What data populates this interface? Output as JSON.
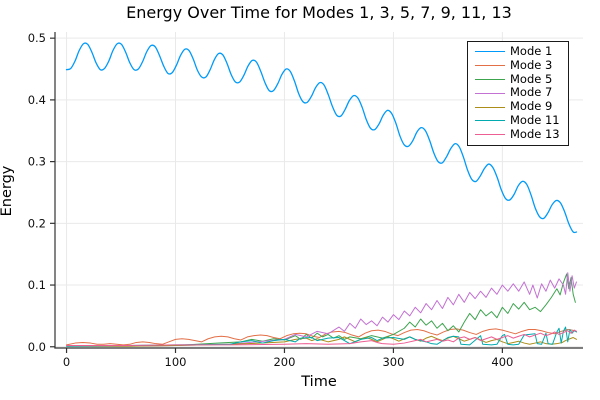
{
  "chart_data": {
    "type": "line",
    "title": "Energy Over Time for Modes 1, 3, 5, 7, 9, 11, 13",
    "xlabel": "Time",
    "ylabel": "Energy",
    "xlim": [
      -10.6,
      474
    ],
    "ylim": [
      -0.002,
      0.51
    ],
    "grid": true,
    "legend_position": "top-right",
    "x_ticks": {
      "values": [
        0,
        100,
        200,
        300,
        400
      ],
      "labels": [
        "0",
        "100",
        "200",
        "300",
        "400"
      ]
    },
    "y_ticks": {
      "values": [
        0.0,
        0.1,
        0.2,
        0.3,
        0.4,
        0.5
      ],
      "labels": [
        "0.0",
        "0.1",
        "0.2",
        "0.3",
        "0.4",
        "0.5"
      ]
    },
    "series": [
      {
        "name": "Mode 1",
        "color": "#009AFA",
        "smooth": true,
        "width": 1.3,
        "x": [
          0,
          3.9,
          7.8,
          11.6,
          15.5,
          19.4,
          23.3,
          27.1,
          31,
          34.9,
          38.8,
          42.6,
          46.5,
          50.4,
          54.3,
          58.1,
          62,
          65.9,
          69.8,
          73.6,
          77.5,
          81.4,
          85.3,
          89.1,
          93,
          96.9,
          100.8,
          104.6,
          108.5,
          112.4,
          116.3,
          120.1,
          124,
          127.9,
          131.8,
          135.6,
          139.5,
          143.4,
          147.3,
          151.1,
          155,
          158.9,
          162.8,
          166.6,
          170.5,
          174.4,
          178.3,
          182.1,
          186,
          189.9,
          193.8,
          197.6,
          201.5,
          205.4,
          209.3,
          213.1,
          217,
          220.9,
          224.8,
          228.6,
          232.5,
          236.4,
          240.3,
          244.1,
          248,
          251.9,
          255.8,
          259.6,
          263.5,
          267.4,
          271.3,
          275.1,
          279,
          282.9,
          286.8,
          290.6,
          294.5,
          298.4,
          302.3,
          306.1,
          310,
          313.9,
          317.8,
          321.6,
          325.5,
          329.4,
          333.3,
          337.1,
          341,
          344.9,
          348.8,
          352.6,
          356.5,
          360.4,
          364.3,
          368.1,
          372,
          375.9,
          379.8,
          383.6,
          387.5,
          391.4,
          395.3,
          399.1,
          403,
          406.9,
          410.8,
          414.6,
          418.5,
          422.4,
          426.3,
          430.1,
          434,
          437.9,
          441.8,
          445.6,
          449.5,
          453.4,
          457.3,
          461.1,
          465,
          468
        ],
        "y": [
          0.449,
          0.451,
          0.463,
          0.48,
          0.491,
          0.49,
          0.477,
          0.46,
          0.449,
          0.451,
          0.463,
          0.48,
          0.491,
          0.49,
          0.477,
          0.46,
          0.449,
          0.45,
          0.462,
          0.478,
          0.488,
          0.486,
          0.472,
          0.455,
          0.443,
          0.444,
          0.456,
          0.472,
          0.482,
          0.48,
          0.466,
          0.448,
          0.437,
          0.437,
          0.449,
          0.465,
          0.475,
          0.473,
          0.459,
          0.441,
          0.429,
          0.429,
          0.44,
          0.455,
          0.464,
          0.461,
          0.446,
          0.428,
          0.415,
          0.415,
          0.426,
          0.441,
          0.45,
          0.446,
          0.43,
          0.41,
          0.397,
          0.396,
          0.406,
          0.42,
          0.428,
          0.424,
          0.408,
          0.389,
          0.375,
          0.374,
          0.385,
          0.399,
          0.407,
          0.403,
          0.388,
          0.368,
          0.354,
          0.352,
          0.361,
          0.375,
          0.383,
          0.378,
          0.362,
          0.341,
          0.327,
          0.325,
          0.334,
          0.348,
          0.355,
          0.35,
          0.334,
          0.314,
          0.3,
          0.298,
          0.308,
          0.321,
          0.329,
          0.324,
          0.307,
          0.286,
          0.271,
          0.268,
          0.277,
          0.289,
          0.296,
          0.29,
          0.274,
          0.254,
          0.24,
          0.238,
          0.247,
          0.261,
          0.268,
          0.263,
          0.246,
          0.225,
          0.211,
          0.208,
          0.217,
          0.23,
          0.237,
          0.233,
          0.218,
          0.199,
          0.186,
          0.186
        ]
      },
      {
        "name": "Mode 3",
        "color": "#E36F47",
        "smooth": false,
        "width": 1.0,
        "x": [
          0,
          8,
          15,
          22,
          28,
          34,
          40,
          46,
          52,
          58,
          64,
          70,
          76,
          82,
          88,
          94,
          100,
          106,
          112,
          118,
          124,
          130,
          136,
          142,
          148,
          154,
          160,
          166,
          172,
          178,
          184,
          190,
          196,
          202,
          208,
          214,
          220,
          226,
          232,
          238,
          244,
          250,
          256,
          262,
          268,
          274,
          280,
          286,
          292,
          298,
          304,
          310,
          316,
          322,
          328,
          334,
          340,
          346,
          352,
          358,
          364,
          370,
          376,
          382,
          388,
          394,
          400,
          406,
          412,
          418,
          424,
          430,
          436,
          442,
          448,
          454,
          460,
          464,
          468
        ],
        "y": [
          0.003,
          0.006,
          0.007,
          0.006,
          0.004,
          0.004,
          0.005,
          0.004,
          0.003,
          0.004,
          0.007,
          0.008,
          0.007,
          0.005,
          0.004,
          0.008,
          0.012,
          0.013,
          0.012,
          0.01,
          0.008,
          0.013,
          0.016,
          0.017,
          0.016,
          0.013,
          0.011,
          0.016,
          0.018,
          0.019,
          0.018,
          0.015,
          0.013,
          0.018,
          0.021,
          0.022,
          0.021,
          0.017,
          0.015,
          0.021,
          0.024,
          0.025,
          0.023,
          0.019,
          0.016,
          0.022,
          0.026,
          0.027,
          0.025,
          0.021,
          0.018,
          0.023,
          0.027,
          0.028,
          0.026,
          0.022,
          0.019,
          0.024,
          0.028,
          0.029,
          0.027,
          0.023,
          0.02,
          0.025,
          0.028,
          0.029,
          0.027,
          0.024,
          0.021,
          0.025,
          0.028,
          0.028,
          0.026,
          0.023,
          0.021,
          0.025,
          0.028,
          0.027,
          0.025
        ]
      },
      {
        "name": "Mode 5",
        "color": "#3DA44E",
        "smooth": false,
        "width": 1.0,
        "x": [
          0,
          60,
          100,
          120,
          140,
          160,
          170,
          180,
          190,
          200,
          210,
          215,
          220,
          225,
          230,
          235,
          240,
          245,
          250,
          255,
          260,
          270,
          280,
          290,
          300,
          310,
          315,
          320,
          325,
          330,
          335,
          340,
          345,
          350,
          355,
          360,
          365,
          370,
          375,
          380,
          385,
          390,
          395,
          400,
          405,
          410,
          415,
          420,
          425,
          430,
          435,
          440,
          445,
          450,
          453,
          456,
          459,
          461,
          463,
          465,
          467
        ],
        "y": [
          0.001,
          0.001,
          0.002,
          0.004,
          0.006,
          0.008,
          0.012,
          0.009,
          0.013,
          0.011,
          0.018,
          0.012,
          0.02,
          0.014,
          0.022,
          0.016,
          0.02,
          0.014,
          0.018,
          0.012,
          0.016,
          0.013,
          0.018,
          0.014,
          0.02,
          0.03,
          0.04,
          0.032,
          0.045,
          0.035,
          0.042,
          0.03,
          0.038,
          0.026,
          0.034,
          0.024,
          0.04,
          0.054,
          0.044,
          0.06,
          0.05,
          0.057,
          0.047,
          0.064,
          0.054,
          0.07,
          0.061,
          0.072,
          0.06,
          0.064,
          0.057,
          0.068,
          0.08,
          0.094,
          0.084,
          0.104,
          0.118,
          0.094,
          0.112,
          0.085,
          0.072
        ]
      },
      {
        "name": "Mode 7",
        "color": "#C371D2",
        "smooth": false,
        "width": 1.0,
        "x": [
          0,
          50,
          100,
          150,
          200,
          210,
          220,
          230,
          240,
          250,
          255,
          260,
          265,
          270,
          275,
          280,
          285,
          290,
          295,
          300,
          305,
          310,
          315,
          320,
          325,
          330,
          335,
          340,
          345,
          350,
          355,
          360,
          365,
          370,
          375,
          380,
          385,
          390,
          395,
          400,
          405,
          410,
          415,
          420,
          425,
          428,
          432,
          436,
          440,
          444,
          448,
          452,
          456,
          458,
          460,
          462,
          464,
          466,
          468
        ],
        "y": [
          0.001,
          0.001,
          0.002,
          0.004,
          0.012,
          0.02,
          0.016,
          0.025,
          0.021,
          0.032,
          0.025,
          0.038,
          0.03,
          0.045,
          0.036,
          0.042,
          0.034,
          0.048,
          0.04,
          0.052,
          0.044,
          0.058,
          0.05,
          0.064,
          0.055,
          0.07,
          0.06,
          0.075,
          0.062,
          0.08,
          0.068,
          0.085,
          0.072,
          0.088,
          0.078,
          0.09,
          0.08,
          0.095,
          0.085,
          0.1,
          0.09,
          0.102,
          0.09,
          0.105,
          0.085,
          0.1,
          0.079,
          0.102,
          0.09,
          0.108,
          0.095,
          0.11,
          0.1,
          0.085,
          0.12,
          0.09,
          0.115,
          0.095,
          0.105
        ]
      },
      {
        "name": "Mode 9",
        "color": "#AC8D18",
        "smooth": false,
        "width": 1.0,
        "x": [
          0,
          50,
          100,
          150,
          180,
          200,
          210,
          220,
          225,
          230,
          240,
          250,
          255,
          260,
          265,
          270,
          275,
          280,
          285,
          290,
          295,
          300,
          305,
          310,
          315,
          320,
          325,
          330,
          335,
          340,
          345,
          350,
          355,
          360,
          365,
          370,
          375,
          380,
          385,
          390,
          395,
          400,
          405,
          410,
          415,
          420,
          425,
          430,
          435,
          440,
          445,
          450,
          455,
          458,
          462,
          465,
          468
        ],
        "y": [
          0.001,
          0.001,
          0.002,
          0.004,
          0.006,
          0.008,
          0.012,
          0.014,
          0.01,
          0.013,
          0.008,
          0.012,
          0.016,
          0.012,
          0.008,
          0.012,
          0.015,
          0.012,
          0.008,
          0.012,
          0.016,
          0.013,
          0.009,
          0.013,
          0.016,
          0.012,
          0.009,
          0.014,
          0.017,
          0.013,
          0.01,
          0.014,
          0.017,
          0.013,
          0.009,
          0.012,
          0.015,
          0.011,
          0.007,
          0.01,
          0.012,
          0.008,
          0.005,
          0.007,
          0.009,
          0.006,
          0.004,
          0.006,
          0.008,
          0.005,
          0.004,
          0.005,
          0.007,
          0.01,
          0.013,
          0.015,
          0.012
        ]
      },
      {
        "name": "Mode 11",
        "color": "#00AAAE",
        "smooth": false,
        "width": 1.0,
        "x": [
          0,
          50,
          100,
          150,
          160,
          170,
          180,
          190,
          200,
          210,
          215,
          225,
          230,
          240,
          250,
          255,
          260,
          270,
          280,
          285,
          290,
          300,
          310,
          315,
          320,
          330,
          335,
          340,
          350,
          355,
          360,
          362,
          370,
          380,
          382,
          390,
          395,
          400,
          402,
          405,
          410,
          415,
          420,
          425,
          430,
          432,
          436,
          440,
          442,
          446,
          450,
          452,
          454,
          456,
          458,
          460,
          462,
          464,
          466,
          468
        ],
        "y": [
          0.001,
          0.002,
          0.003,
          0.004,
          0.008,
          0.01,
          0.006,
          0.01,
          0.012,
          0.008,
          0.014,
          0.015,
          0.01,
          0.014,
          0.015,
          0.01,
          0.005,
          0.012,
          0.015,
          0.01,
          0.014,
          0.015,
          0.012,
          0.016,
          0.012,
          0.008,
          0.005,
          0.004,
          0.015,
          0.017,
          0.016,
          0.004,
          0.003,
          0.018,
          0.004,
          0.003,
          0.004,
          0.018,
          0.02,
          0.004,
          0.003,
          0.004,
          0.019,
          0.02,
          0.021,
          0.005,
          0.004,
          0.022,
          0.005,
          0.004,
          0.024,
          0.03,
          0.006,
          0.025,
          0.032,
          0.008,
          0.028,
          0.022,
          0.026,
          0.024
        ]
      },
      {
        "name": "Mode 13",
        "color": "#ED5E93",
        "smooth": false,
        "width": 1.0,
        "x": [
          0,
          50,
          100,
          150,
          200,
          220,
          240,
          260,
          270,
          280,
          285,
          290,
          300,
          310,
          320,
          325,
          330,
          335,
          340,
          345,
          350,
          355,
          360,
          365,
          370,
          375,
          380,
          385,
          390,
          395,
          400,
          405,
          410,
          415,
          420,
          425,
          430,
          435,
          440,
          445,
          448,
          452,
          456,
          460,
          463,
          466,
          468
        ],
        "y": [
          0.002,
          0.002,
          0.003,
          0.003,
          0.004,
          0.005,
          0.004,
          0.005,
          0.008,
          0.01,
          0.007,
          0.005,
          0.004,
          0.006,
          0.01,
          0.012,
          0.008,
          0.01,
          0.012,
          0.009,
          0.011,
          0.008,
          0.014,
          0.016,
          0.012,
          0.015,
          0.01,
          0.013,
          0.016,
          0.012,
          0.015,
          0.018,
          0.014,
          0.017,
          0.02,
          0.016,
          0.019,
          0.022,
          0.018,
          0.021,
          0.024,
          0.02,
          0.023,
          0.026,
          0.022,
          0.027,
          0.025
        ]
      }
    ]
  },
  "style": {
    "spine_color": "#333333",
    "grid_color": "#e9e9e9",
    "background": "#ffffff"
  }
}
